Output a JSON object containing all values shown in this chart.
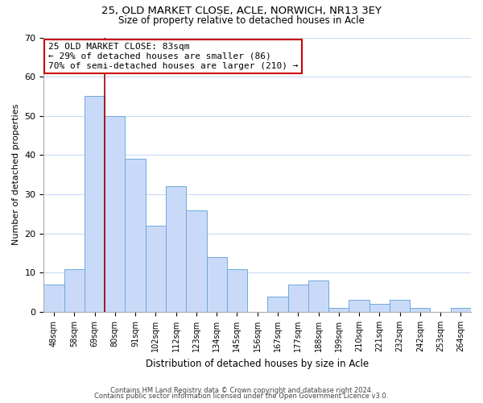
{
  "title_line1": "25, OLD MARKET CLOSE, ACLE, NORWICH, NR13 3EY",
  "title_line2": "Size of property relative to detached houses in Acle",
  "xlabel": "Distribution of detached houses by size in Acle",
  "ylabel": "Number of detached properties",
  "bar_labels": [
    "48sqm",
    "58sqm",
    "69sqm",
    "80sqm",
    "91sqm",
    "102sqm",
    "112sqm",
    "123sqm",
    "134sqm",
    "145sqm",
    "156sqm",
    "167sqm",
    "177sqm",
    "188sqm",
    "199sqm",
    "210sqm",
    "221sqm",
    "232sqm",
    "242sqm",
    "253sqm",
    "264sqm"
  ],
  "bar_values": [
    7,
    11,
    55,
    50,
    39,
    22,
    32,
    26,
    14,
    11,
    0,
    4,
    7,
    8,
    1,
    3,
    2,
    3,
    1,
    0,
    1
  ],
  "bar_color": "#c9daf8",
  "bar_edge_color": "#6fa8dc",
  "ylim": [
    0,
    70
  ],
  "yticks": [
    0,
    10,
    20,
    30,
    40,
    50,
    60,
    70
  ],
  "property_line_color": "#990000",
  "annotation_text": "25 OLD MARKET CLOSE: 83sqm\n← 29% of detached houses are smaller (86)\n70% of semi-detached houses are larger (210) →",
  "annotation_box_color": "#ffffff",
  "annotation_box_edge": "#cc0000",
  "footnote_line1": "Contains HM Land Registry data © Crown copyright and database right 2024.",
  "footnote_line2": "Contains public sector information licensed under the Open Government Licence v3.0.",
  "background_color": "#ffffff",
  "grid_color": "#c9daf8",
  "title1_fontsize": 9.5,
  "title2_fontsize": 8.5,
  "ylabel_fontsize": 8,
  "xlabel_fontsize": 8.5
}
